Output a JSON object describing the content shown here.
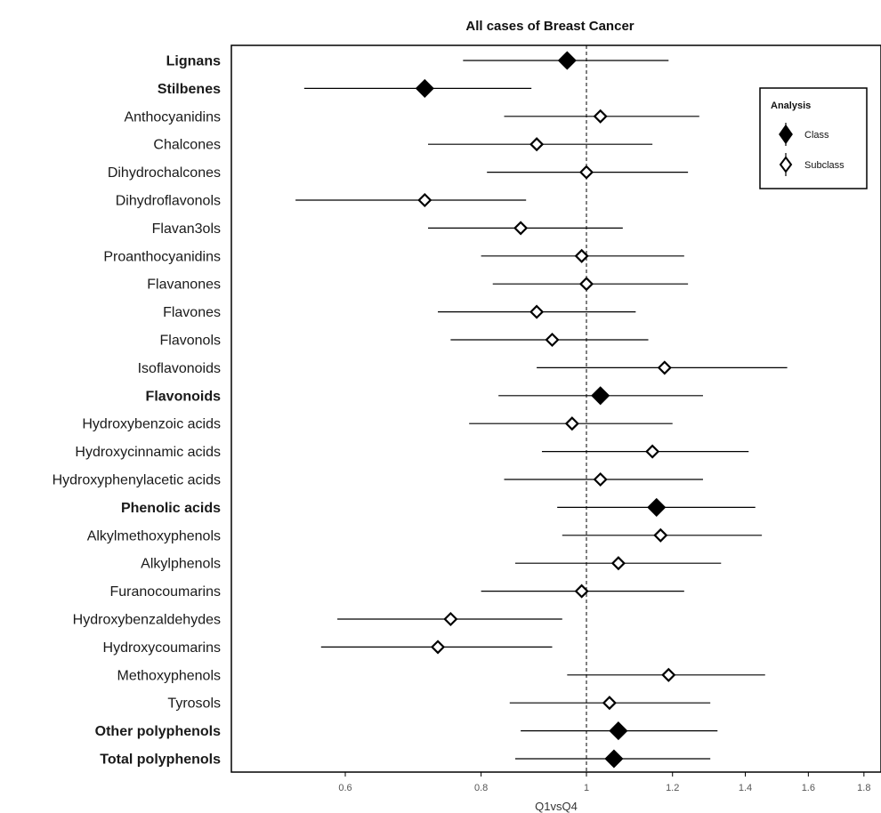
{
  "chart_data": {
    "type": "forest",
    "title": "All cases of Breast Cancer",
    "xlabel": "Q1vsQ4",
    "x_scale": "log",
    "reference_line": 1,
    "x_ticks": [
      {
        "value": 0.6,
        "label": "0.6"
      },
      {
        "value": 0.8,
        "label": "0.8"
      },
      {
        "value": 1.0,
        "label": "1"
      },
      {
        "value": 1.2,
        "label": "1.2"
      },
      {
        "value": 1.4,
        "label": "1.4"
      },
      {
        "value": 1.6,
        "label": "1.6"
      },
      {
        "value": 1.8,
        "label": "1.8"
      }
    ],
    "legend": {
      "title": "Analysis",
      "placement": "top-right",
      "entries": [
        {
          "name": "Class",
          "marker": "filled-diamond"
        },
        {
          "name": "Subclass",
          "marker": "open-diamond"
        }
      ]
    },
    "rows": [
      {
        "label": "Lignans",
        "analysis": "Class",
        "est": 0.96,
        "lo": 0.77,
        "hi": 1.19
      },
      {
        "label": "Stilbenes",
        "analysis": "Class",
        "est": 0.71,
        "lo": 0.55,
        "hi": 0.89
      },
      {
        "label": "Anthocyanidins",
        "analysis": "Subclass",
        "est": 1.03,
        "lo": 0.84,
        "hi": 1.27
      },
      {
        "label": "Chalcones",
        "analysis": "Subclass",
        "est": 0.9,
        "lo": 0.715,
        "hi": 1.15
      },
      {
        "label": "Dihydrochalcones",
        "analysis": "Subclass",
        "est": 1.0,
        "lo": 0.81,
        "hi": 1.24
      },
      {
        "label": "Dihydroflavonols",
        "analysis": "Subclass",
        "est": 0.71,
        "lo": 0.54,
        "hi": 0.88
      },
      {
        "label": "Flavan3ols",
        "analysis": "Subclass",
        "est": 0.87,
        "lo": 0.715,
        "hi": 1.08
      },
      {
        "label": "Proanthocyanidins",
        "analysis": "Subclass",
        "est": 0.99,
        "lo": 0.8,
        "hi": 1.23
      },
      {
        "label": "Flavanones",
        "analysis": "Subclass",
        "est": 1.0,
        "lo": 0.82,
        "hi": 1.24
      },
      {
        "label": "Flavones",
        "analysis": "Subclass",
        "est": 0.9,
        "lo": 0.73,
        "hi": 1.11
      },
      {
        "label": "Flavonols",
        "analysis": "Subclass",
        "est": 0.93,
        "lo": 0.75,
        "hi": 1.14
      },
      {
        "label": "Isoflavonoids",
        "analysis": "Subclass",
        "est": 1.18,
        "lo": 0.9,
        "hi": 1.53
      },
      {
        "label": "Flavonoids",
        "analysis": "Class",
        "est": 1.03,
        "lo": 0.83,
        "hi": 1.28
      },
      {
        "label": "Hydroxybenzoic acids",
        "analysis": "Subclass",
        "est": 0.97,
        "lo": 0.78,
        "hi": 1.2
      },
      {
        "label": "Hydroxycinnamic acids",
        "analysis": "Subclass",
        "est": 1.15,
        "lo": 0.91,
        "hi": 1.41
      },
      {
        "label": "Hydroxyphenylacetic acids",
        "analysis": "Subclass",
        "est": 1.03,
        "lo": 0.84,
        "hi": 1.28
      },
      {
        "label": "Phenolic acids",
        "analysis": "Class",
        "est": 1.16,
        "lo": 0.94,
        "hi": 1.43
      },
      {
        "label": "Alkylmethoxyphenols",
        "analysis": "Subclass",
        "est": 1.17,
        "lo": 0.95,
        "hi": 1.45
      },
      {
        "label": "Alkylphenols",
        "analysis": "Subclass",
        "est": 1.07,
        "lo": 0.86,
        "hi": 1.33
      },
      {
        "label": "Furanocoumarins",
        "analysis": "Subclass",
        "est": 0.99,
        "lo": 0.8,
        "hi": 1.23
      },
      {
        "label": "Hydroxybenzaldehydes",
        "analysis": "Subclass",
        "est": 0.75,
        "lo": 0.59,
        "hi": 0.95
      },
      {
        "label": "Hydroxycoumarins",
        "analysis": "Subclass",
        "est": 0.73,
        "lo": 0.57,
        "hi": 0.93
      },
      {
        "label": "Methoxyphenols",
        "analysis": "Subclass",
        "est": 1.19,
        "lo": 0.96,
        "hi": 1.46
      },
      {
        "label": "Tyrosols",
        "analysis": "Subclass",
        "est": 1.05,
        "lo": 0.85,
        "hi": 1.3
      },
      {
        "label": "Other polyphenols",
        "analysis": "Class",
        "est": 1.07,
        "lo": 0.87,
        "hi": 1.32
      },
      {
        "label": "Total polyphenols",
        "analysis": "Class",
        "est": 1.06,
        "lo": 0.86,
        "hi": 1.3
      }
    ]
  }
}
